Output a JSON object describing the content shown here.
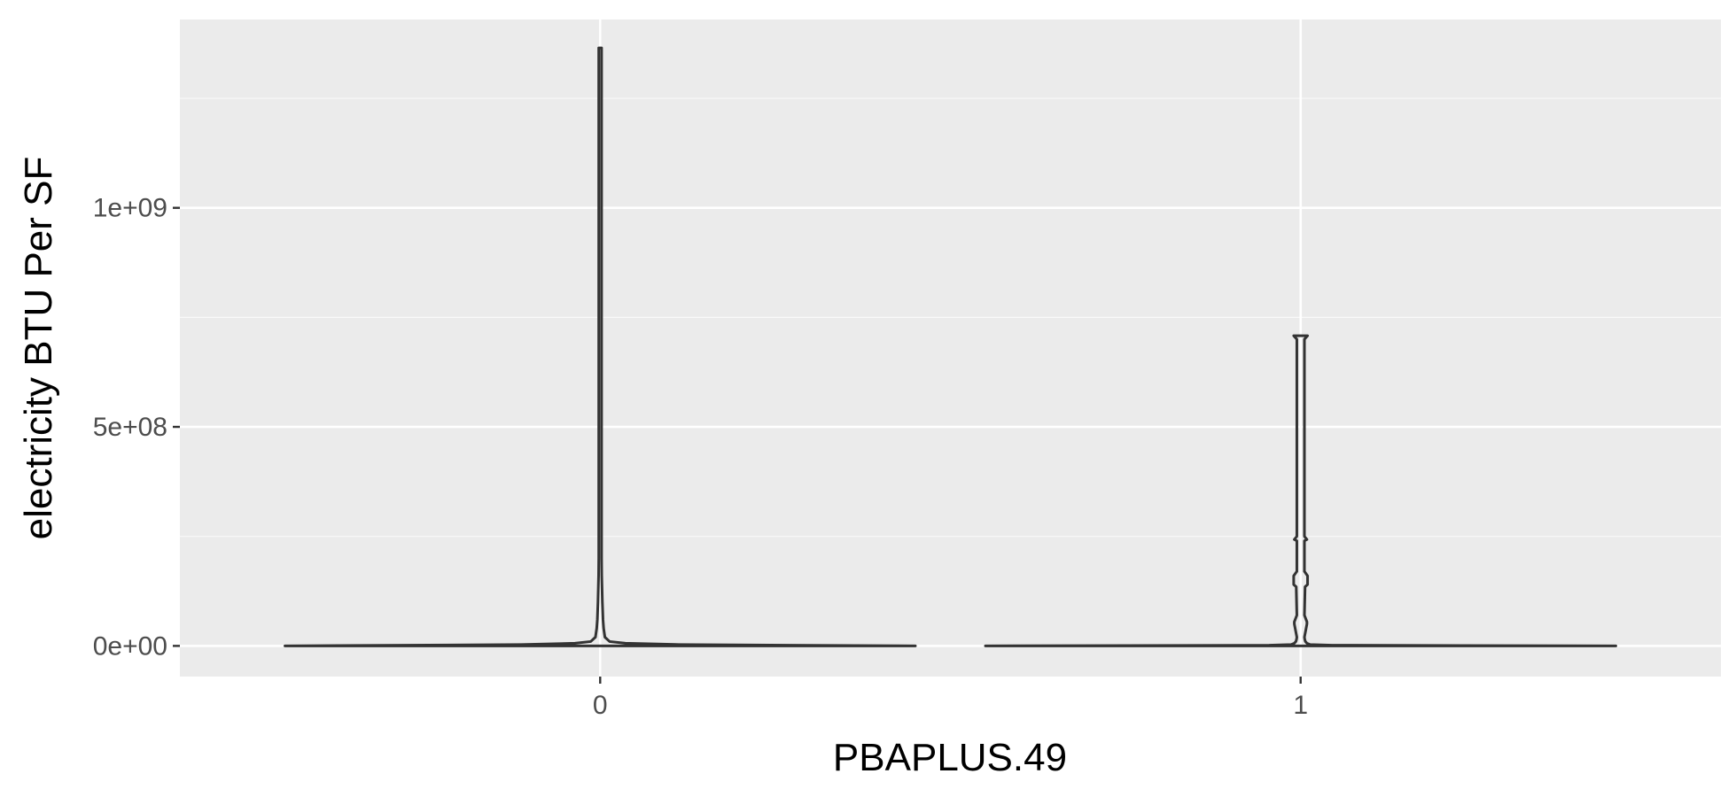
{
  "chart_data": {
    "type": "violin",
    "title": "",
    "xlabel": "PBAPLUS.49",
    "ylabel": "electricity BTU Per SF",
    "categories": [
      "0",
      "1"
    ],
    "y_ticks": [
      {
        "value": 0,
        "label": "0e+00"
      },
      {
        "value": 500000000,
        "label": "5e+08"
      },
      {
        "value": 1000000000,
        "label": "1e+09"
      }
    ],
    "ylim": [
      -70000000,
      1430000000
    ],
    "grid": true,
    "legend": "none",
    "violins": [
      {
        "category": "0",
        "max": 1365000000,
        "profile": [
          [
            0,
            1.0
          ],
          [
            3000000,
            0.25
          ],
          [
            6000000,
            0.08
          ],
          [
            10000000,
            0.03
          ],
          [
            20000000,
            0.015
          ],
          [
            40000000,
            0.011
          ],
          [
            60000000,
            0.009
          ],
          [
            80000000,
            0.008
          ],
          [
            100000000,
            0.007
          ],
          [
            130000000,
            0.006
          ],
          [
            160000000,
            0.005
          ],
          [
            200000000,
            0.004
          ],
          [
            1365000000,
            0.003
          ]
        ]
      },
      {
        "category": "1",
        "max": 708000000,
        "profile": [
          [
            0,
            1.0
          ],
          [
            1500000,
            0.1
          ],
          [
            3000000,
            0.03
          ],
          [
            6000000,
            0.02
          ],
          [
            10000000,
            0.015
          ],
          [
            15000000,
            0.013
          ],
          [
            20000000,
            0.012
          ],
          [
            50000000,
            0.02
          ],
          [
            55000000,
            0.02
          ],
          [
            70000000,
            0.012
          ],
          [
            135000000,
            0.014
          ],
          [
            140000000,
            0.022
          ],
          [
            150000000,
            0.022
          ],
          [
            160000000,
            0.022
          ],
          [
            170000000,
            0.012
          ],
          [
            240000000,
            0.012
          ],
          [
            243000000,
            0.02
          ],
          [
            250000000,
            0.012
          ],
          [
            700000000,
            0.012
          ],
          [
            708000000,
            0.022
          ]
        ]
      }
    ],
    "colors": {
      "panel": "#ebebeb",
      "grid_major": "#ffffff",
      "grid_minor": "#f5f5f5",
      "outline": "#333333",
      "tick_label": "#4d4d4d"
    }
  }
}
